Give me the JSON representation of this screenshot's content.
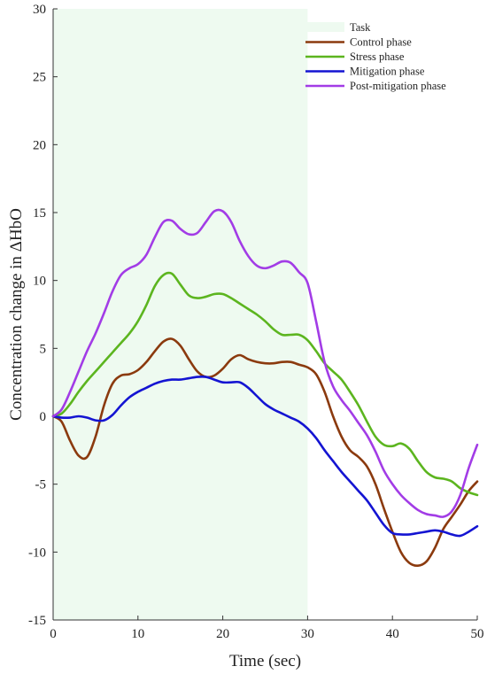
{
  "chart_data": {
    "type": "line",
    "title": "",
    "xlabel": "Time (sec)",
    "ylabel": "Concentration change in ΔHbO",
    "xlim": [
      0,
      50
    ],
    "ylim": [
      -15,
      30
    ],
    "x_ticks": [
      0,
      10,
      20,
      30,
      40,
      50
    ],
    "y_ticks": [
      -15,
      -10,
      -5,
      0,
      5,
      10,
      15,
      20,
      25,
      30
    ],
    "grid": false,
    "legend_position": "top-right",
    "shaded_region": {
      "label": "Task",
      "x_start": 0,
      "x_end": 30,
      "color": "#eefaf0"
    },
    "series": [
      {
        "name": "Control phase",
        "color": "#8b3a0e",
        "x": [
          0,
          1,
          2,
          3,
          4,
          5,
          6,
          7,
          8,
          9,
          10,
          11,
          12,
          13,
          14,
          15,
          16,
          17,
          18,
          19,
          20,
          21,
          22,
          23,
          24,
          25,
          26,
          27,
          28,
          29,
          30,
          31,
          32,
          33,
          34,
          35,
          36,
          37,
          38,
          39,
          40,
          41,
          42,
          43,
          44,
          45,
          46,
          47,
          48,
          49,
          50
        ],
        "y": [
          0,
          -0.4,
          -1.8,
          -2.9,
          -3.0,
          -1.5,
          0.8,
          2.4,
          3.0,
          3.1,
          3.4,
          4.0,
          4.8,
          5.5,
          5.7,
          5.2,
          4.2,
          3.3,
          2.9,
          3.0,
          3.5,
          4.2,
          4.5,
          4.2,
          4.0,
          3.9,
          3.9,
          4.0,
          4.0,
          3.8,
          3.6,
          3.1,
          1.8,
          0.0,
          -1.5,
          -2.5,
          -3.0,
          -3.7,
          -5.0,
          -6.8,
          -8.5,
          -10.0,
          -10.8,
          -11.0,
          -10.7,
          -9.7,
          -8.3,
          -7.4,
          -6.5,
          -5.5,
          -4.8
        ]
      },
      {
        "name": "Stress phase",
        "color": "#5cb51f",
        "x": [
          0,
          1,
          2,
          3,
          4,
          5,
          6,
          7,
          8,
          9,
          10,
          11,
          12,
          13,
          14,
          15,
          16,
          17,
          18,
          19,
          20,
          21,
          22,
          23,
          24,
          25,
          26,
          27,
          28,
          29,
          30,
          31,
          32,
          33,
          34,
          35,
          36,
          37,
          38,
          39,
          40,
          41,
          42,
          43,
          44,
          45,
          46,
          47,
          48,
          49,
          50
        ],
        "y": [
          0,
          0.2,
          0.9,
          1.8,
          2.6,
          3.3,
          4.0,
          4.7,
          5.4,
          6.1,
          7.0,
          8.2,
          9.6,
          10.4,
          10.5,
          9.7,
          8.9,
          8.7,
          8.8,
          9.0,
          9.0,
          8.7,
          8.3,
          7.9,
          7.5,
          7.0,
          6.4,
          6.0,
          6.0,
          6.0,
          5.6,
          4.8,
          3.9,
          3.3,
          2.7,
          1.8,
          0.8,
          -0.4,
          -1.5,
          -2.1,
          -2.2,
          -2.0,
          -2.4,
          -3.3,
          -4.1,
          -4.5,
          -4.6,
          -4.8,
          -5.3,
          -5.6,
          -5.8
        ]
      },
      {
        "name": "Mitigation phase",
        "color": "#1414d2",
        "x": [
          0,
          1,
          2,
          3,
          4,
          5,
          6,
          7,
          8,
          9,
          10,
          11,
          12,
          13,
          14,
          15,
          16,
          17,
          18,
          19,
          20,
          21,
          22,
          23,
          24,
          25,
          26,
          27,
          28,
          29,
          30,
          31,
          32,
          33,
          34,
          35,
          36,
          37,
          38,
          39,
          40,
          41,
          42,
          43,
          44,
          45,
          46,
          47,
          48,
          49,
          50
        ],
        "y": [
          0,
          -0.1,
          -0.1,
          0,
          -0.1,
          -0.3,
          -0.3,
          0.1,
          0.8,
          1.4,
          1.8,
          2.1,
          2.4,
          2.6,
          2.7,
          2.7,
          2.8,
          2.9,
          2.9,
          2.7,
          2.5,
          2.5,
          2.5,
          2.1,
          1.5,
          0.9,
          0.5,
          0.2,
          -0.1,
          -0.4,
          -0.9,
          -1.6,
          -2.5,
          -3.3,
          -4.1,
          -4.8,
          -5.5,
          -6.2,
          -7.1,
          -8.0,
          -8.6,
          -8.7,
          -8.7,
          -8.6,
          -8.5,
          -8.4,
          -8.5,
          -8.7,
          -8.8,
          -8.5,
          -8.1
        ]
      },
      {
        "name": "Post-mitigation phase",
        "color": "#a23ce6",
        "x": [
          0,
          1,
          2,
          3,
          4,
          5,
          6,
          7,
          8,
          9,
          10,
          11,
          12,
          13,
          14,
          15,
          16,
          17,
          18,
          19,
          20,
          21,
          22,
          23,
          24,
          25,
          26,
          27,
          28,
          29,
          30,
          31,
          32,
          33,
          34,
          35,
          36,
          37,
          38,
          39,
          40,
          41,
          42,
          43,
          44,
          45,
          46,
          47,
          48,
          49,
          50
        ],
        "y": [
          0,
          0.5,
          1.8,
          3.3,
          4.8,
          6.1,
          7.6,
          9.2,
          10.4,
          10.9,
          11.2,
          11.9,
          13.2,
          14.3,
          14.4,
          13.8,
          13.4,
          13.5,
          14.3,
          15.1,
          15.1,
          14.3,
          12.9,
          11.8,
          11.1,
          10.9,
          11.1,
          11.4,
          11.3,
          10.6,
          9.8,
          7.0,
          4.0,
          2.2,
          1.2,
          0.4,
          -0.5,
          -1.4,
          -2.6,
          -4.0,
          -5.0,
          -5.8,
          -6.4,
          -6.9,
          -7.2,
          -7.3,
          -7.4,
          -7.0,
          -5.8,
          -3.8,
          -2.1
        ]
      }
    ]
  }
}
